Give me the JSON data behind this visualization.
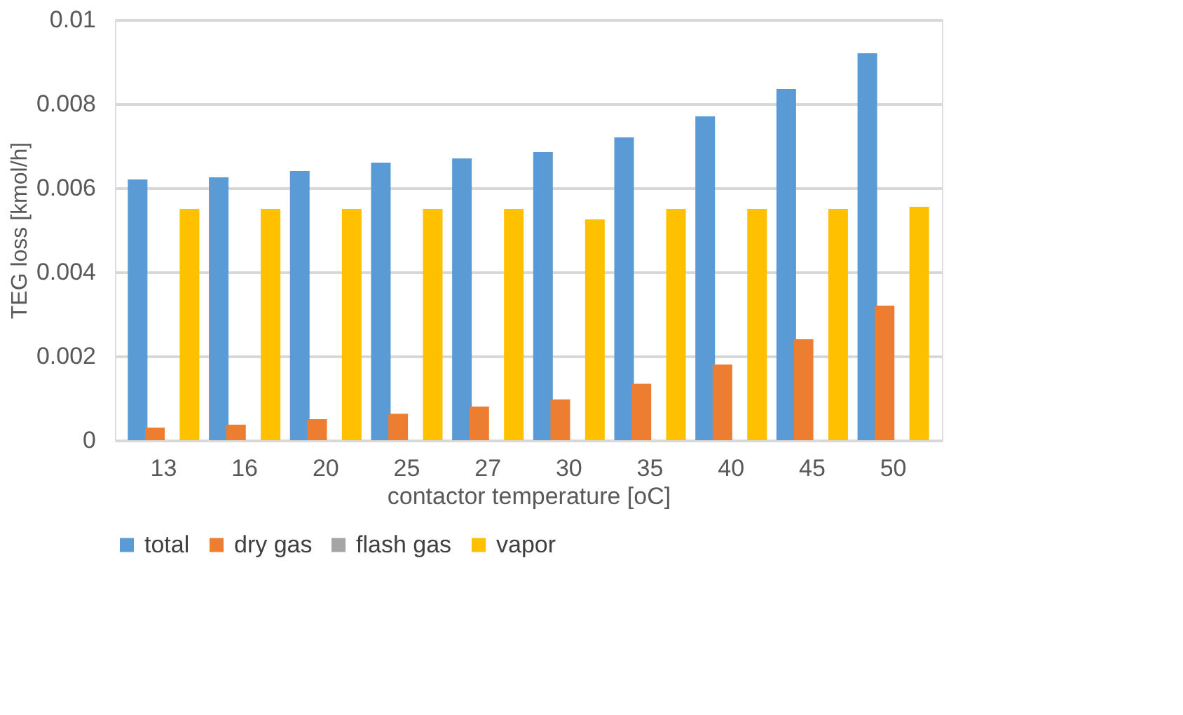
{
  "chart_data": {
    "type": "bar",
    "xlabel": "contactor temperature [oC]",
    "ylabel": "TEG loss [kmol/h]",
    "categories": [
      "13",
      "16",
      "20",
      "25",
      "27",
      "30",
      "35",
      "40",
      "45",
      "50"
    ],
    "series": [
      {
        "name": "total",
        "color": "#5b9bd5",
        "values": [
          0.0062,
          0.00625,
          0.0064,
          0.0066,
          0.0067,
          0.00685,
          0.0072,
          0.0077,
          0.00835,
          0.0092
        ]
      },
      {
        "name": "dry gas",
        "color": "#ed7d31",
        "values": [
          0.0003,
          0.00037,
          0.0005,
          0.00063,
          0.0008,
          0.00097,
          0.00134,
          0.0018,
          0.0024,
          0.0032
        ]
      },
      {
        "name": "flash gas",
        "color": "#a5a5a5",
        "values": [
          0,
          0,
          0,
          0,
          0,
          0,
          0,
          0,
          0,
          0
        ]
      },
      {
        "name": "vapor",
        "color": "#ffc000",
        "values": [
          0.0055,
          0.0055,
          0.0055,
          0.0055,
          0.0055,
          0.00525,
          0.0055,
          0.0055,
          0.0055,
          0.00555
        ]
      }
    ],
    "ylim": [
      0,
      0.01
    ],
    "yticks": [
      0,
      0.002,
      0.004,
      0.006,
      0.008,
      0.01
    ],
    "grid": "y",
    "legend": "bottom"
  }
}
